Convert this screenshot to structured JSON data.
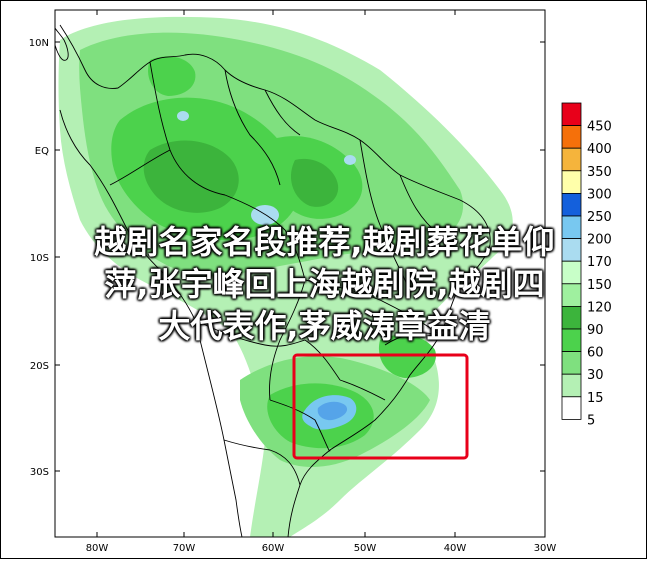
{
  "map": {
    "lat_labels": [
      "10N",
      "EQ",
      "10S",
      "20S",
      "30S"
    ],
    "lon_labels": [
      "80W",
      "70W",
      "60W",
      "50W",
      "40W",
      "30W"
    ]
  },
  "colorbar": {
    "labels": [
      "450",
      "400",
      "350",
      "300",
      "250",
      "200",
      "170",
      "150",
      "120",
      "90",
      "60",
      "30",
      "15",
      "5"
    ],
    "colors": [
      "#e8001a",
      "#f5700a",
      "#f5b43c",
      "#ffffaa",
      "#1460dc",
      "#78c8f0",
      "#aadcf0",
      "#c8ffc8",
      "#9ff09f",
      "#3cb43c",
      "#4cd24c",
      "#7fe07f",
      "#b4f0b4",
      "#ffffff"
    ]
  },
  "overlay": {
    "line1": "越剧名家名段推荐,越剧葬花单仰",
    "line2": "萍,张宇峰回上海越剧院,越剧四",
    "line3": "大代表作,茅威涛章益清"
  },
  "highlight": {
    "color": "#e8001a"
  }
}
